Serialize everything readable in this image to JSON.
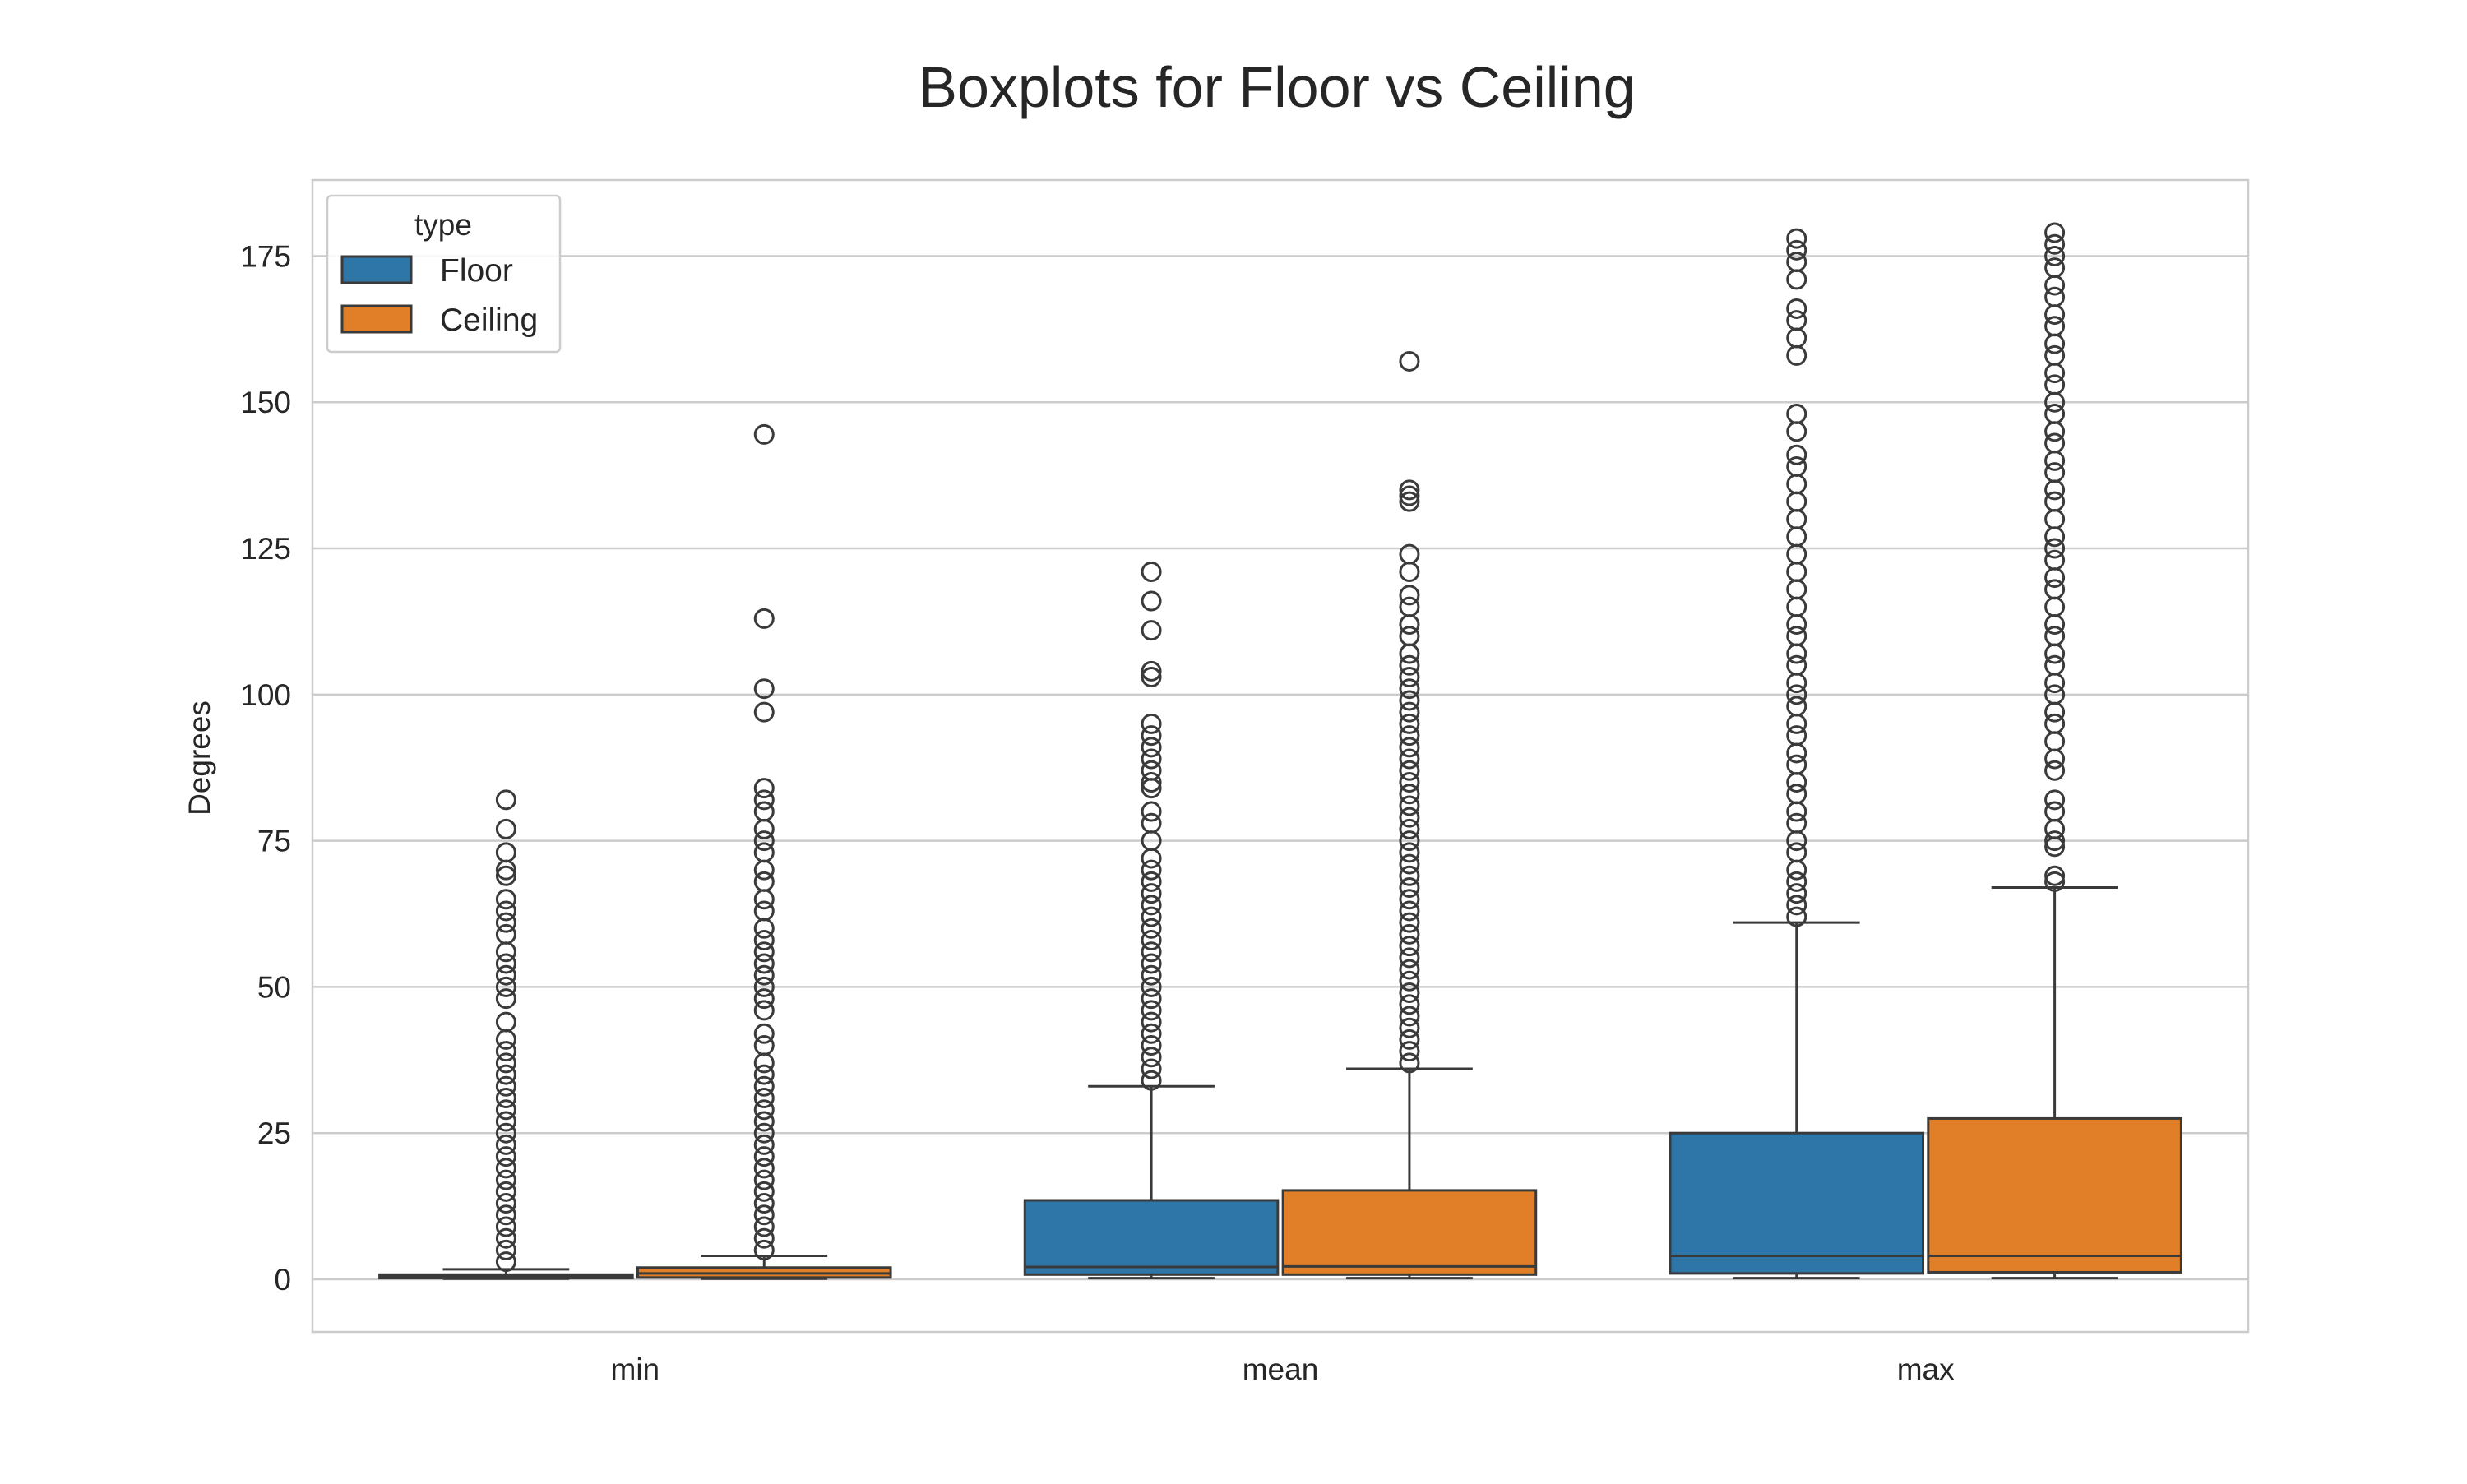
{
  "chart_data": {
    "type": "box",
    "title": "Boxplots for Floor vs Ceiling",
    "xlabel": "",
    "ylabel": "Degrees",
    "categories": [
      "min",
      "mean",
      "max"
    ],
    "ylim": [
      -9,
      188
    ],
    "yticks": [
      0,
      25,
      50,
      75,
      100,
      125,
      150,
      175
    ],
    "grid": true,
    "legend": {
      "title": "type",
      "position": "top-left"
    },
    "series": [
      {
        "name": "Floor",
        "color": "#2e75a8",
        "boxes": [
          {
            "category": "min",
            "whisker_low": 0.1,
            "q1": 0.2,
            "median": 0.5,
            "q3": 0.8,
            "whisker_high": 1.7,
            "outliers": [
              3,
              5,
              7,
              9,
              11,
              13,
              15,
              17,
              19,
              21,
              23,
              25,
              27,
              29,
              31,
              33,
              35,
              37,
              39,
              41,
              44,
              48,
              50,
              52,
              54,
              56,
              59,
              61,
              63,
              65,
              69,
              70,
              73,
              77,
              82
            ]
          },
          {
            "category": "mean",
            "whisker_low": 0.2,
            "q1": 0.8,
            "median": 2.1,
            "q3": 13.5,
            "whisker_high": 33,
            "outliers": [
              34,
              36,
              38,
              40,
              42,
              44,
              46,
              48,
              50,
              52,
              54,
              56,
              58,
              60,
              62,
              64,
              66,
              68,
              70,
              72,
              75,
              78,
              80,
              84,
              85,
              87,
              89,
              91,
              93,
              95,
              103,
              104,
              111,
              116,
              121
            ]
          },
          {
            "category": "max",
            "whisker_low": 0.2,
            "q1": 1.0,
            "median": 4.0,
            "q3": 25,
            "whisker_high": 61,
            "outliers": [
              62,
              64,
              66,
              68,
              70,
              73,
              75,
              78,
              80,
              83,
              85,
              88,
              90,
              93,
              95,
              98,
              100,
              102,
              105,
              107,
              110,
              112,
              115,
              118,
              121,
              124,
              127,
              130,
              133,
              136,
              139,
              141,
              145,
              148,
              158,
              161,
              164,
              166,
              171,
              174,
              176,
              178
            ]
          }
        ]
      },
      {
        "name": "Ceiling",
        "color": "#e07f27",
        "boxes": [
          {
            "category": "min",
            "whisker_low": 0.1,
            "q1": 0.3,
            "median": 1.0,
            "q3": 2.0,
            "whisker_high": 4,
            "outliers": [
              5,
              7,
              9,
              11,
              13,
              15,
              17,
              19,
              21,
              23,
              25,
              27,
              29,
              31,
              33,
              35,
              37,
              40,
              42,
              46,
              48,
              50,
              52,
              54,
              56,
              58,
              60,
              63,
              65,
              68,
              70,
              73,
              75,
              77,
              80,
              82,
              84,
              97,
              101,
              113,
              144.5
            ]
          },
          {
            "category": "mean",
            "whisker_low": 0.2,
            "q1": 0.8,
            "median": 2.2,
            "q3": 15.2,
            "whisker_high": 36,
            "outliers": [
              37,
              39,
              41,
              43,
              45,
              47,
              49,
              51,
              53,
              55,
              57,
              59,
              61,
              63,
              65,
              67,
              69,
              71,
              73,
              75,
              77,
              79,
              81,
              83,
              85,
              87,
              89,
              91,
              93,
              95,
              97,
              99,
              101,
              103,
              105,
              107,
              110,
              112,
              115,
              117,
              121,
              124,
              133,
              134,
              135,
              157
            ]
          },
          {
            "category": "max",
            "whisker_low": 0.2,
            "q1": 1.2,
            "median": 4.0,
            "q3": 27.5,
            "whisker_high": 67,
            "outliers": [
              68,
              69,
              74,
              75,
              77,
              80,
              82,
              87,
              89,
              92,
              95,
              97,
              100,
              102,
              105,
              107,
              110,
              112,
              115,
              118,
              120,
              123,
              125,
              127,
              130,
              133,
              135,
              138,
              140,
              143,
              145,
              148,
              150,
              153,
              155,
              158,
              160,
              163,
              165,
              168,
              170,
              173,
              175,
              177,
              179
            ]
          }
        ]
      }
    ]
  }
}
